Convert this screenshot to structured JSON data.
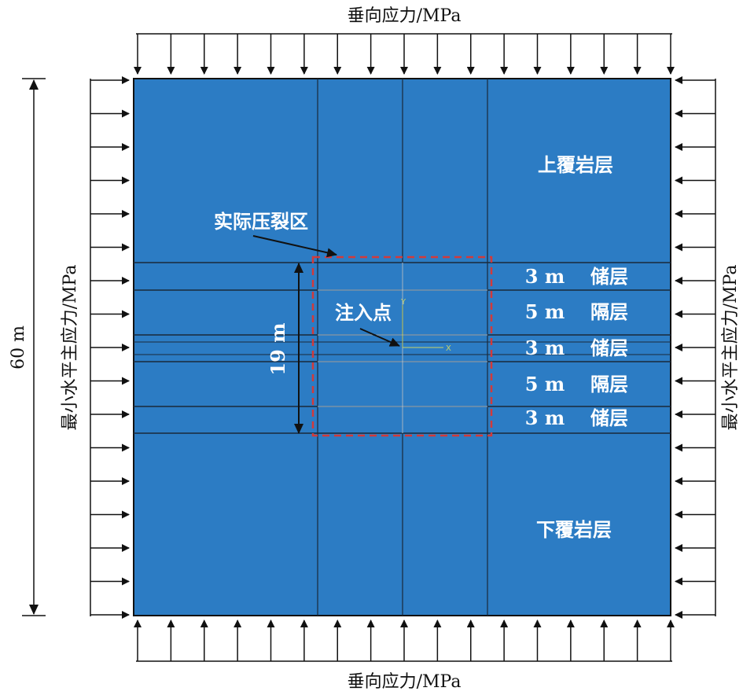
{
  "colors": {
    "model_fill": "#2c7cc4",
    "grid_line": "#1a2a3a",
    "mesh_line": "#a8c4dc",
    "fracture_box": "#d23a3a",
    "arrow": "#111111",
    "axis": "#c8d36a"
  },
  "labels": {
    "top_stress": "垂向应力/MPa",
    "bottom_stress": "垂向应力/MPa",
    "left_stress": "最小水平主应力/MPa",
    "right_stress": "最小水平主应力/MPa",
    "height_dim": "60 m",
    "zone_dim": "19 m",
    "upper_overburden": "上覆岩层",
    "lower_overburden": "下覆岩层",
    "fracture_zone": "实际压裂区",
    "injection_point": "注入点",
    "axis_y": "Y",
    "axis_x": "X"
  },
  "layers": [
    {
      "thickness": "3 m",
      "name": "储层"
    },
    {
      "thickness": "5 m",
      "name": "隔层"
    },
    {
      "thickness": "3 m",
      "name": "储层"
    },
    {
      "thickness": "5 m",
      "name": "隔层"
    },
    {
      "thickness": "3 m",
      "name": "储层"
    }
  ]
}
